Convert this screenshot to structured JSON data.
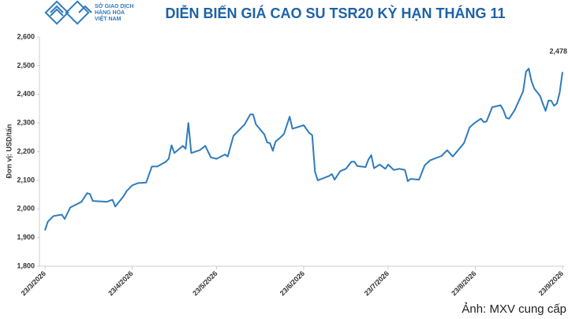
{
  "chart_data": {
    "type": "line",
    "title": "DIỄN BIẾN GIÁ CAO SU TSR20 KỲ HẠN THÁNG 11",
    "logo_text": [
      "SỞ GIAO DỊCH",
      "HÀNG HÓA",
      "VIỆT NAM"
    ],
    "y_label": "Đơn vị: USD/tấn",
    "caption": "Ảnh: MXV cung cấp",
    "x": [
      "23/3/2026",
      "24/3/2026",
      "26/3/2026",
      "29/3/2026",
      "30/3/2026",
      "1/4/2026",
      "5/4/2026",
      "7/4/2026",
      "8/4/2026",
      "9/4/2026",
      "14/4/2026",
      "16/4/2026",
      "17/4/2026",
      "20/4/2026",
      "21/4/2026",
      "23/4/2026",
      "25/4/2026",
      "28/4/2026",
      "29/4/2026",
      "30/4/2026",
      "2/5/2026",
      "5/5/2026",
      "6/5/2026",
      "7/5/2026",
      "8/5/2026",
      "11/5/2026",
      "12/5/2026",
      "13/5/2026",
      "14/5/2026",
      "17/5/2026",
      "19/5/2026",
      "21/5/2026",
      "23/5/2026",
      "26/5/2026",
      "27/5/2026",
      "29/5/2026",
      "2/6/2026",
      "4/6/2026",
      "5/6/2026",
      "6/6/2026",
      "9/6/2026",
      "10/6/2026",
      "11/6/2026",
      "12/6/2026",
      "13/6/2026",
      "15/6/2026",
      "16/6/2026",
      "18/6/2026",
      "19/6/2026",
      "23/6/2026",
      "25/6/2026",
      "26/6/2026",
      "27/6/2026",
      "28/6/2026",
      "2/7/2026",
      "3/7/2026",
      "4/7/2026",
      "6/7/2026",
      "8/7/2026",
      "10/7/2026",
      "11/7/2026",
      "12/7/2026",
      "15/7/2026",
      "16/7/2026",
      "17/7/2026",
      "18/7/2026",
      "20/7/2026",
      "22/7/2026",
      "23/7/2026",
      "25/7/2026",
      "27/7/2026",
      "29/7/2026",
      "30/7/2026",
      "31/7/2026",
      "3/8/2026",
      "5/8/2026",
      "7/8/2026",
      "11/8/2026",
      "13/8/2026",
      "15/8/2026",
      "19/8/2026",
      "21/8/2026",
      "23/8/2026",
      "25/8/2026",
      "26/8/2026",
      "27/8/2026",
      "29/8/2026",
      "1/9/2026",
      "2/9/2026",
      "3/9/2026",
      "4/9/2026",
      "6/9/2026",
      "9/9/2026",
      "10/9/2026",
      "11/9/2026",
      "12/9/2026",
      "13/9/2026",
      "15/9/2026",
      "16/9/2026",
      "17/9/2026",
      "18/9/2026",
      "19/9/2026",
      "20/9/2026",
      "21/9/2026",
      "22/9/2026",
      "23/9/2026"
    ],
    "series": [
      {
        "color": "#2f7bbd",
        "values": [
          1925,
          1955,
          1975,
          1980,
          1965,
          2005,
          2025,
          2055,
          2052,
          2028,
          2025,
          2032,
          2008,
          2045,
          2062,
          2082,
          2090,
          2092,
          2120,
          2148,
          2148,
          2165,
          2175,
          2222,
          2195,
          2220,
          2210,
          2300,
          2195,
          2205,
          2220,
          2180,
          2175,
          2190,
          2183,
          2255,
          2295,
          2330,
          2330,
          2295,
          2260,
          2232,
          2230,
          2203,
          2235,
          2252,
          2262,
          2322,
          2280,
          2292,
          2265,
          2258,
          2130,
          2100,
          2115,
          2122,
          2102,
          2132,
          2140,
          2165,
          2165,
          2150,
          2146,
          2172,
          2188,
          2142,
          2155,
          2140,
          2155,
          2136,
          2140,
          2136,
          2097,
          2105,
          2102,
          2152,
          2170,
          2185,
          2205,
          2183,
          2230,
          2285,
          2302,
          2315,
          2303,
          2305,
          2355,
          2362,
          2345,
          2318,
          2315,
          2345,
          2410,
          2478,
          2490,
          2445,
          2420,
          2395,
          2368,
          2342,
          2378,
          2378,
          2360,
          2368,
          2405,
          2478
        ],
        "value_labels": [
          null,
          null,
          null,
          null,
          null,
          null,
          null,
          null,
          null,
          null,
          null,
          null,
          null,
          null,
          null,
          null,
          null,
          null,
          null,
          null,
          null,
          null,
          null,
          null,
          null,
          null,
          null,
          null,
          null,
          null,
          null,
          null,
          null,
          null,
          null,
          null,
          null,
          null,
          null,
          null,
          null,
          null,
          null,
          null,
          null,
          null,
          null,
          null,
          null,
          null,
          null,
          null,
          null,
          null,
          null,
          null,
          null,
          null,
          null,
          null,
          null,
          null,
          null,
          null,
          null,
          null,
          null,
          null,
          null,
          null,
          null,
          null,
          null,
          null,
          null,
          null,
          null,
          null,
          null,
          null,
          null,
          null,
          null,
          null,
          null,
          null,
          null,
          null,
          null,
          null,
          null,
          null,
          null,
          null,
          null,
          null,
          null,
          null,
          null,
          null,
          null,
          null,
          null,
          null,
          null,
          "2,478"
        ]
      }
    ],
    "xlim": [
      "23/3/2026",
      "23/9/2026"
    ],
    "xticks": [
      "23/3/2026",
      "23/4/2026",
      "23/5/2026",
      "23/6/2026",
      "23/7/2026",
      "23/8/2026",
      "23/9/2026"
    ],
    "ylim": [
      1800,
      2600
    ],
    "yticks": [
      {
        "value": 1800,
        "label": "1,800"
      },
      {
        "value": 1900,
        "label": "1,900"
      },
      {
        "value": 2000,
        "label": "2,000"
      },
      {
        "value": 2100,
        "label": "2,100"
      },
      {
        "value": 2200,
        "label": "2,200"
      },
      {
        "value": 2300,
        "label": "2,300"
      },
      {
        "value": 2400,
        "label": "2,400"
      },
      {
        "value": 2500,
        "label": "2,500"
      },
      {
        "value": 2600,
        "label": "2,600"
      }
    ],
    "grid": false
  }
}
